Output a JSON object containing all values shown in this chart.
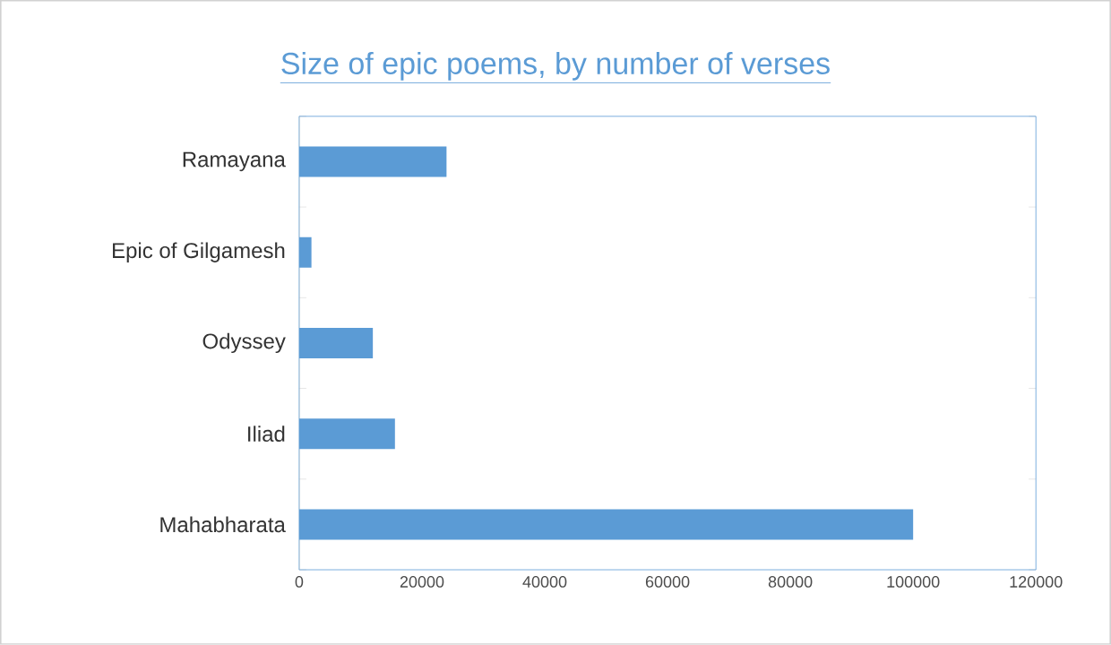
{
  "chart_data": {
    "type": "bar",
    "orientation": "horizontal",
    "title": "Size of epic poems, by number of verses",
    "categories": [
      "Ramayana",
      "Epic of Gilgamesh",
      "Odyssey",
      "Iliad",
      "Mahabharata"
    ],
    "values": [
      24000,
      2000,
      12000,
      15600,
      100000
    ],
    "color": "#5b9bd5",
    "xlim": [
      0,
      120000
    ],
    "xticks": [
      0,
      20000,
      40000,
      60000,
      80000,
      100000,
      120000
    ],
    "grid": false
  }
}
